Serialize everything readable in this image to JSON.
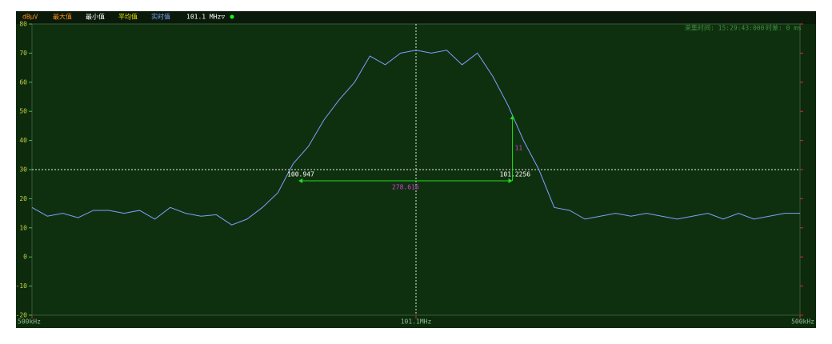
{
  "chart_data": {
    "type": "line",
    "unit": "dBμV",
    "legend_items": [
      {
        "name": "最大值",
        "color": "#ff8c1a"
      },
      {
        "name": "最小值",
        "color": "#ffffff"
      },
      {
        "name": "平均值",
        "color": "#f0e000"
      },
      {
        "name": "实时值",
        "color": "#7f9fff"
      }
    ],
    "frequency": "101.1 MHz▽",
    "capture_time": "采集时间: 15:29:43:000",
    "time_diff": "时差: 0 ms",
    "x": [
      100.6,
      100.62,
      100.64,
      100.66,
      100.68,
      100.7,
      100.72,
      100.74,
      100.76,
      100.78,
      100.8,
      100.82,
      100.84,
      100.86,
      100.88,
      100.9,
      100.92,
      100.94,
      100.96,
      100.98,
      101.0,
      101.02,
      101.04,
      101.06,
      101.08,
      101.1,
      101.12,
      101.14,
      101.16,
      101.18,
      101.2,
      101.22,
      101.24,
      101.26,
      101.28,
      101.3,
      101.32,
      101.34,
      101.36,
      101.38,
      101.4,
      101.42,
      101.44,
      101.46,
      101.48,
      101.5,
      101.52,
      101.54,
      101.56,
      101.58,
      101.6
    ],
    "series": [
      {
        "name": "实时值",
        "color": "#7f9fff",
        "values": [
          17,
          14,
          15,
          13.5,
          16,
          16,
          15,
          16,
          13,
          17,
          15,
          14,
          14.5,
          11,
          13,
          17,
          22,
          32,
          38,
          47,
          54,
          60,
          69,
          66,
          70,
          71,
          70,
          71,
          66,
          70,
          62,
          52,
          40,
          30,
          17,
          16,
          13,
          14,
          15,
          14,
          15,
          14,
          13,
          14,
          15,
          13,
          15,
          13,
          14,
          15,
          15
        ]
      }
    ],
    "xlim": [
      100.6,
      101.6
    ],
    "xticks": [
      {
        "value": 100.6,
        "label": "500kHz"
      },
      {
        "value": 101.1,
        "label": "101.1MHz"
      },
      {
        "value": 101.6,
        "label": "500kHz"
      }
    ],
    "ylim": [
      -20,
      80
    ],
    "yticks": [
      -20,
      -10,
      0,
      10,
      20,
      30,
      40,
      50,
      60,
      70,
      80
    ],
    "threshold": 30,
    "markers": [
      {
        "x": 100.947
      },
      {
        "x": 101.2256
      }
    ],
    "marker_span": 278.616,
    "marker_level_diff": 11,
    "marker_color": "#22dd22"
  }
}
